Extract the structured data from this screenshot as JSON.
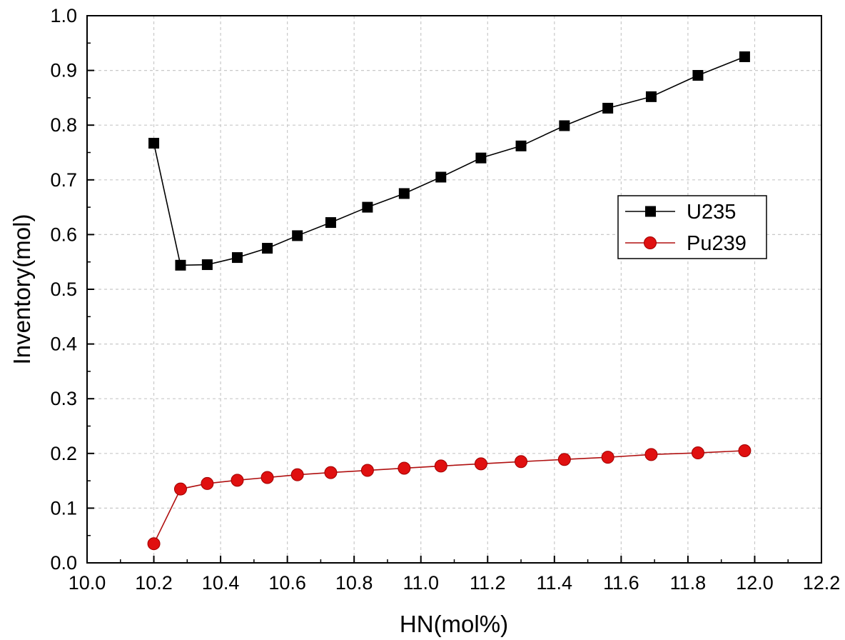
{
  "chart_data": {
    "type": "line",
    "xlabel": "HN(mol%)",
    "ylabel": "Inventory(mol)",
    "xlim": [
      10.0,
      12.2
    ],
    "ylim": [
      0.0,
      1.0
    ],
    "xticks": [
      "10.0",
      "10.2",
      "10.4",
      "10.6",
      "10.8",
      "11.0",
      "11.2",
      "11.4",
      "11.6",
      "11.8",
      "12.0",
      "12.2"
    ],
    "yticks": [
      "0.0",
      "0.1",
      "0.2",
      "0.3",
      "0.4",
      "0.5",
      "0.6",
      "0.7",
      "0.8",
      "0.9",
      "1.0"
    ],
    "grid": true,
    "legend_position": "right",
    "x": [
      10.2,
      10.28,
      10.36,
      10.45,
      10.54,
      10.63,
      10.73,
      10.84,
      10.95,
      11.06,
      11.18,
      11.3,
      11.43,
      11.56,
      11.69,
      11.83,
      11.97
    ],
    "series": [
      {
        "name": "U235",
        "color": "#000000",
        "line_color": "#000000",
        "marker": "square",
        "values": [
          0.767,
          0.544,
          0.545,
          0.558,
          0.575,
          0.598,
          0.622,
          0.65,
          0.675,
          0.705,
          0.74,
          0.762,
          0.799,
          0.831,
          0.852,
          0.891,
          0.925
        ]
      },
      {
        "name": "Pu239",
        "color": "#e01010",
        "line_color": "#b01010",
        "marker": "circle",
        "values": [
          0.035,
          0.135,
          0.145,
          0.151,
          0.156,
          0.161,
          0.165,
          0.169,
          0.173,
          0.177,
          0.181,
          0.185,
          0.189,
          0.193,
          0.198,
          0.201,
          0.205
        ]
      }
    ]
  }
}
